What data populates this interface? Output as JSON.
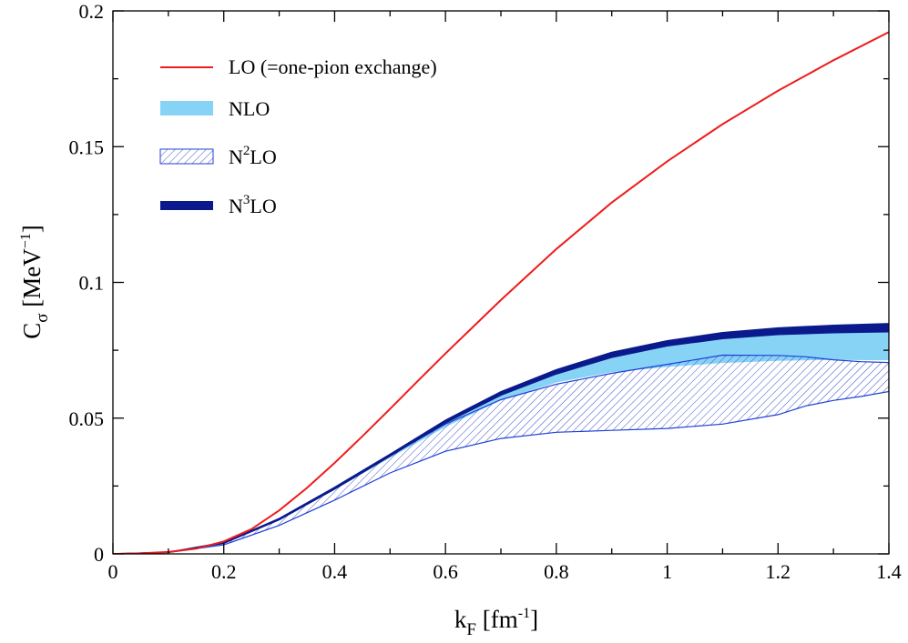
{
  "chart_data": {
    "type": "line",
    "title": "",
    "xlabel": {
      "main": "k",
      "sub": "F",
      "unit_open": " [fm",
      "unit_sup": "-1",
      "unit_close": "]"
    },
    "ylabel": {
      "main": "C",
      "sub": "σ",
      "unit_open": " [MeV",
      "unit_sup": "−1",
      "unit_close": "]"
    },
    "xlim": [
      0,
      1.4
    ],
    "ylim": [
      0,
      0.2
    ],
    "xticks": [
      0,
      0.2,
      0.4,
      0.6,
      0.8,
      1,
      1.2,
      1.4
    ],
    "xtick_labels": [
      "0",
      "0.2",
      "0.4",
      "0.6",
      "0.8",
      "1",
      "1.2",
      "1.4"
    ],
    "yticks": [
      0,
      0.05,
      0.1,
      0.15,
      0.2
    ],
    "ytick_labels": [
      "0",
      "0.05",
      "0.1",
      "0.15",
      "0.2"
    ],
    "legend": {
      "placement": "top-left",
      "entries": [
        {
          "id": "lo",
          "text": "LO (=one-pion exchange)",
          "pre": "",
          "sup": "",
          "post": ""
        },
        {
          "id": "nlo",
          "text": "NLO",
          "pre": "",
          "sup": "",
          "post": ""
        },
        {
          "id": "n2lo",
          "text": "",
          "pre": "N",
          "sup": "2",
          "post": "LO"
        },
        {
          "id": "n3lo",
          "text": "",
          "pre": "N",
          "sup": "3",
          "post": "LO"
        }
      ]
    },
    "colors": {
      "lo": "#ee1c1c",
      "nlo_fill": "#87d3f5",
      "n2lo_edge": "#1f3fd6",
      "n2lo_hatch": "#3a4fcc",
      "n3lo": "#0a1a8c"
    },
    "series": [
      {
        "id": "lo",
        "name": "LO (=one-pion exchange)",
        "kind": "line",
        "x": [
          0,
          0.05,
          0.1,
          0.15,
          0.2,
          0.25,
          0.3,
          0.35,
          0.4,
          0.45,
          0.5,
          0.55,
          0.6,
          0.7,
          0.8,
          0.9,
          1.0,
          1.1,
          1.2,
          1.3,
          1.4
        ],
        "y": [
          0,
          0.0002,
          0.0007,
          0.0019,
          0.0046,
          0.0091,
          0.016,
          0.0243,
          0.0335,
          0.0433,
          0.0534,
          0.0637,
          0.0738,
          0.0935,
          0.1123,
          0.1294,
          0.1446,
          0.1583,
          0.1706,
          0.1818,
          0.1922
        ]
      },
      {
        "id": "nlo",
        "name": "NLO",
        "kind": "band",
        "x": [
          0,
          0.1,
          0.2,
          0.3,
          0.4,
          0.5,
          0.6,
          0.7,
          0.8,
          0.9,
          1.0,
          1.1,
          1.2,
          1.3,
          1.4
        ],
        "upper": [
          0,
          0.0006,
          0.004,
          0.0128,
          0.0243,
          0.0365,
          0.0488,
          0.0592,
          0.0672,
          0.0733,
          0.0775,
          0.0802,
          0.0818,
          0.0822,
          0.0821
        ],
        "lower": [
          0,
          0.0006,
          0.004,
          0.0126,
          0.0238,
          0.0356,
          0.0469,
          0.0568,
          0.0633,
          0.0671,
          0.069,
          0.0705,
          0.0713,
          0.0716,
          0.0715
        ]
      },
      {
        "id": "n2lo",
        "name": "N2LO",
        "kind": "hatched-band",
        "x": [
          0,
          0.1,
          0.2,
          0.3,
          0.4,
          0.5,
          0.6,
          0.7,
          0.8,
          0.9,
          1.0,
          1.1,
          1.2,
          1.25,
          1.3,
          1.35,
          1.4
        ],
        "upper": [
          0,
          0.0006,
          0.004,
          0.0128,
          0.0243,
          0.0362,
          0.0478,
          0.0568,
          0.0625,
          0.0665,
          0.0698,
          0.0732,
          0.0731,
          0.0726,
          0.0715,
          0.0708,
          0.0705
        ],
        "lower": [
          0,
          0.0005,
          0.0033,
          0.0105,
          0.0198,
          0.0298,
          0.0378,
          0.0425,
          0.0448,
          0.0455,
          0.0462,
          0.0478,
          0.0513,
          0.0545,
          0.0565,
          0.058,
          0.0598
        ]
      },
      {
        "id": "n3lo",
        "name": "N3LO",
        "kind": "thick-band",
        "x": [
          0,
          0.1,
          0.2,
          0.3,
          0.4,
          0.5,
          0.6,
          0.7,
          0.8,
          0.9,
          1.0,
          1.1,
          1.2,
          1.3,
          1.4
        ],
        "upper": [
          0,
          0.0006,
          0.0042,
          0.013,
          0.0245,
          0.0367,
          0.0492,
          0.0597,
          0.0678,
          0.0742,
          0.0785,
          0.0815,
          0.0832,
          0.0842,
          0.0848
        ],
        "lower": [
          0,
          0.0006,
          0.0039,
          0.0126,
          0.0239,
          0.036,
          0.0483,
          0.0585,
          0.0663,
          0.0724,
          0.0766,
          0.0793,
          0.0808,
          0.0815,
          0.0818
        ]
      }
    ]
  }
}
